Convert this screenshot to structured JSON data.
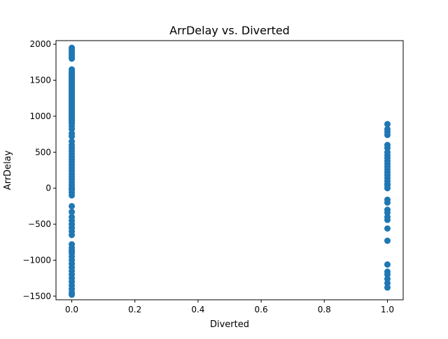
{
  "chart_data": {
    "type": "scatter",
    "title": "ArrDelay vs. Diverted",
    "xlabel": "Diverted",
    "ylabel": "ArrDelay",
    "xlim": [
      -0.05,
      1.05
    ],
    "ylim": [
      -1550,
      2050
    ],
    "x_ticks": [
      0.0,
      0.2,
      0.4,
      0.6,
      0.8,
      1.0
    ],
    "x_tick_labels": [
      "0.0",
      "0.2",
      "0.4",
      "0.6",
      "0.8",
      "1.0"
    ],
    "y_ticks": [
      -1500,
      -1000,
      -500,
      0,
      500,
      1000,
      1500,
      2000
    ],
    "y_tick_labels": [
      "−1500",
      "−1000",
      "−500",
      "0",
      "500",
      "1000",
      "1500",
      "2000"
    ],
    "grid": false,
    "marker_color": "#1f77b4",
    "series": [
      {
        "x_group_0": 0.0,
        "points_x0_y": [
          1950,
          1925,
          1900,
          1880,
          1850,
          1820,
          1800,
          1650,
          1620,
          1600,
          1580,
          1560,
          1540,
          1520,
          1500,
          1480,
          1460,
          1440,
          1420,
          1400,
          1380,
          1360,
          1340,
          1320,
          1300,
          1280,
          1260,
          1240,
          1220,
          1200,
          1180,
          1160,
          1140,
          1120,
          1100,
          1080,
          1060,
          1040,
          1020,
          1000,
          980,
          960,
          940,
          920,
          900,
          860,
          820,
          760,
          720,
          650,
          600,
          560,
          520,
          480,
          440,
          400,
          360,
          320,
          280,
          240,
          200,
          160,
          120,
          80,
          40,
          0,
          -20,
          -60,
          -100,
          -250,
          -330,
          -400,
          -450,
          -500,
          -550,
          -600,
          -650,
          -780,
          -830,
          -870,
          -900,
          -950,
          -1000,
          -1050,
          -1100,
          -1150,
          -1200,
          -1250,
          -1300,
          -1350,
          -1400,
          -1450,
          -1480
        ],
        "x_group_1": 1.0,
        "points_x1_y": [
          890,
          820,
          780,
          740,
          600,
          560,
          500,
          460,
          420,
          380,
          340,
          300,
          260,
          220,
          180,
          140,
          100,
          60,
          40,
          0,
          -160,
          -200,
          -300,
          -340,
          -400,
          -440,
          -560,
          -730,
          -1060,
          -1160,
          -1200,
          -1260,
          -1320,
          -1380
        ]
      }
    ]
  }
}
